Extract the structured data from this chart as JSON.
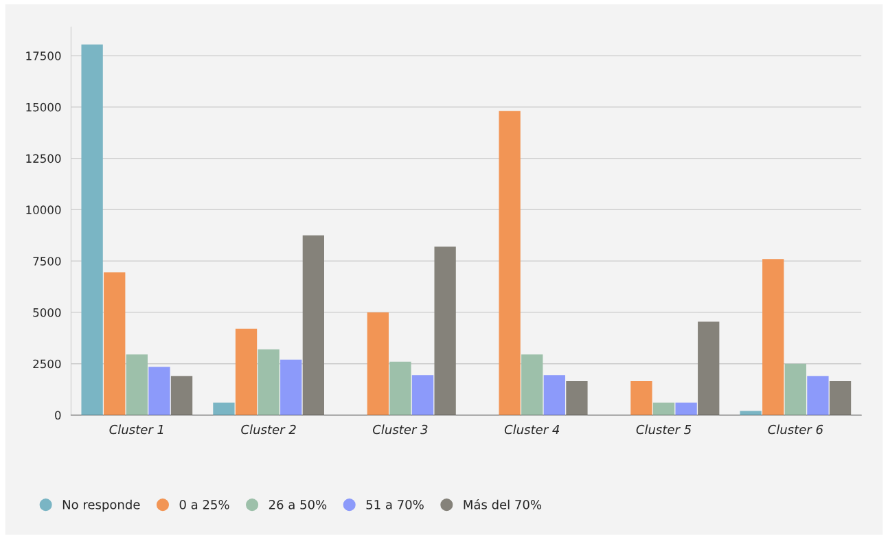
{
  "chart_data": {
    "type": "bar",
    "categories": [
      "Cluster 1",
      "Cluster 2",
      "Cluster 3",
      "Cluster 4",
      "Cluster 5",
      "Cluster 6"
    ],
    "series": [
      {
        "name": "No responde",
        "color": "#7ab5c4",
        "values": [
          18050,
          600,
          null,
          null,
          null,
          200
        ]
      },
      {
        "name": "0 a 25%",
        "color": "#f29555",
        "values": [
          6950,
          4200,
          5000,
          14800,
          1650,
          7600
        ]
      },
      {
        "name": "26 a 50%",
        "color": "#9dc0aa",
        "values": [
          2950,
          3200,
          2600,
          2950,
          600,
          2500
        ]
      },
      {
        "name": "51 a 70%",
        "color": "#8c9afa",
        "values": [
          2350,
          2700,
          1950,
          1950,
          600,
          1900
        ]
      },
      {
        "name": "Más del 70%",
        "color": "#85827a",
        "values": [
          1900,
          8750,
          8200,
          1650,
          4550,
          1650
        ]
      }
    ],
    "ylim": [
      0,
      18900
    ],
    "yticks": [
      0,
      2500,
      5000,
      7500,
      10000,
      12500,
      15000,
      17500
    ],
    "grid": "y",
    "legend": "bottom",
    "marker": "circle"
  }
}
